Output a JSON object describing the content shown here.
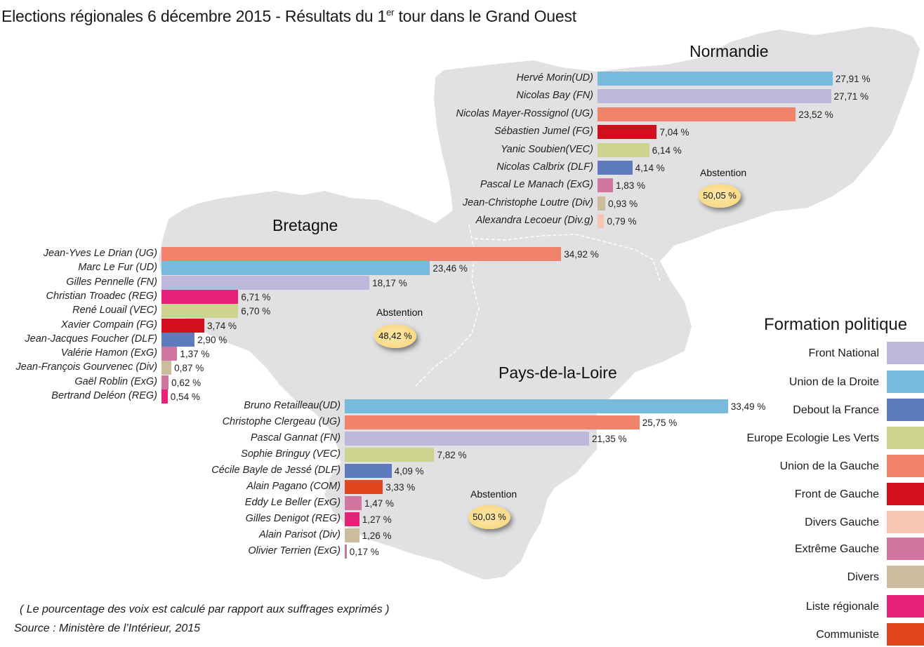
{
  "title_main": "Elections régionales 6 décembre 2015 - Résultats du 1",
  "title_sup": "er",
  "title_end": " tour dans le Grand Ouest",
  "note": "( Le pourcentage des voix est calculé par rapport aux suffrages exprimés )",
  "source": "Source : Ministère de l’Intérieur, 2015",
  "abstention_label": "Abstention",
  "legend": {
    "title": "Formation politique",
    "items": [
      {
        "label": "Front National",
        "color": "#beb7dc"
      },
      {
        "label": "Union de la Droite",
        "color": "#77badc"
      },
      {
        "label": "Debout la France",
        "color": "#5e7bbd"
      },
      {
        "label": "Europe Ecologie Les Verts",
        "color": "#cdd28f"
      },
      {
        "label": "Union de la Gauche",
        "color": "#f1836a"
      },
      {
        "label": "Front de Gauche",
        "color": "#d2101d"
      },
      {
        "label": "Divers Gauche",
        "color": "#f6c6b2"
      },
      {
        "label": "Extrême Gauche",
        "color": "#cf77a0"
      },
      {
        "label": "Divers",
        "color": "#cbbc9e"
      },
      {
        "label": "Liste régionale",
        "color": "#e7217a"
      },
      {
        "label": "Communiste",
        "color": "#e2461c"
      }
    ]
  },
  "chart_data": [
    {
      "type": "bar",
      "title": "Normandie",
      "abstention": "50,05 %",
      "categories": [
        "Hervé Morin(UD)",
        "Nicolas Bay (FN)",
        "Nicolas Mayer-Rossignol (UG)",
        "Sébastien Jumel (FG)",
        "Yanic Soubien(VEC)",
        "Nicolas Calbrix (DLF)",
        "Pascal Le Manach (ExG)",
        "Jean-Christophe Loutre (Div)",
        "Alexandra Lecoeur (Div.g)"
      ],
      "values": [
        27.91,
        27.71,
        23.52,
        7.04,
        6.14,
        4.14,
        1.83,
        0.93,
        0.79
      ],
      "labels": [
        "27,91 %",
        "27,71 %",
        "23,52 %",
        "7,04 %",
        "6,14 %",
        "4,14 %",
        "1,83 %",
        "0,93 %",
        "0,79 %"
      ],
      "colors": [
        "#77badc",
        "#beb7dc",
        "#f1836a",
        "#d2101d",
        "#cdd28f",
        "#5e7bbd",
        "#cf77a0",
        "#cbbc9e",
        "#f6c6b2"
      ]
    },
    {
      "type": "bar",
      "title": "Bretagne",
      "abstention": "48,42 %",
      "categories": [
        "Jean-Yves Le Drian (UG)",
        "Marc Le Fur (UD)",
        "Gilles Pennelle (FN)",
        "Christian Troadec (REG)",
        "René Louail (VEC)",
        "Xavier Compain (FG)",
        "Jean-Jacques Foucher (DLF)",
        "Valérie Hamon (ExG)",
        "Jean-François Gourvenec (Div)",
        "Gaël Roblin (ExG)",
        "Bertrand Deléon (REG)"
      ],
      "values": [
        34.92,
        23.46,
        18.17,
        6.71,
        6.7,
        3.74,
        2.9,
        1.37,
        0.87,
        0.62,
        0.54
      ],
      "labels": [
        "34,92 %",
        "23,46 %",
        "18,17 %",
        "6,71 %",
        "6,70 %",
        "3,74 %",
        "2,90 %",
        "1,37 %",
        "0,87 %",
        "0,62 %",
        "0,54 %"
      ],
      "colors": [
        "#f1836a",
        "#77badc",
        "#beb7dc",
        "#e7217a",
        "#cdd28f",
        "#d2101d",
        "#5e7bbd",
        "#cf77a0",
        "#cbbc9e",
        "#cf77a0",
        "#e7217a"
      ]
    },
    {
      "type": "bar",
      "title": "Pays-de-la-Loire",
      "abstention": "50,03 %",
      "categories": [
        "Bruno Retailleau(UD)",
        "Christophe Clergeau (UG)",
        "Pascal Gannat (FN)",
        "Sophie Bringuy (VEC)",
        "Cécile Bayle de Jessé (DLF)",
        "Alain Pagano (COM)",
        "Eddy Le Beller (ExG)",
        "Gilles Denigot (REG)",
        "Alain Parisot (Div)",
        "Olivier Terrien (ExG)"
      ],
      "values": [
        33.49,
        25.75,
        21.35,
        7.82,
        4.09,
        3.33,
        1.47,
        1.27,
        1.26,
        0.17
      ],
      "labels": [
        "33,49 %",
        "25,75 %",
        "21,35 %",
        "7,82 %",
        "4,09 %",
        "3,33 %",
        "1,47 %",
        "1,27 %",
        "1,26 %",
        "0,17 %"
      ],
      "colors": [
        "#77badc",
        "#f1836a",
        "#beb7dc",
        "#cdd28f",
        "#5e7bbd",
        "#e2461c",
        "#cf77a0",
        "#e7217a",
        "#cbbc9e",
        "#cf77a0"
      ]
    }
  ]
}
